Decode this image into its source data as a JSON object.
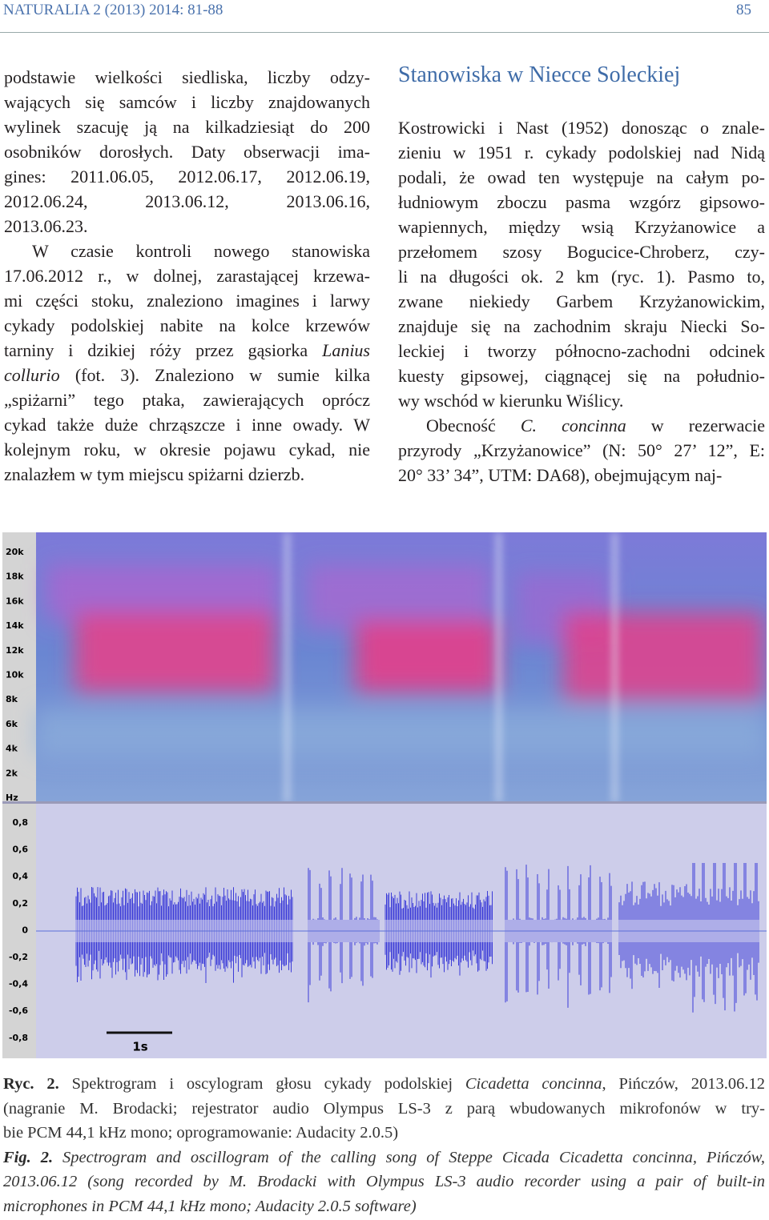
{
  "header": {
    "journal": "NATURALIA 2 (2013) 2014: 81-88",
    "page_number": "85"
  },
  "left_column": {
    "paragraphs": [
      [
        [
          "podstawie wielkości siedliska, liczby odzy-"
        ],
        [
          "wających się samców i liczby znajdowanych"
        ],
        [
          "wylinek szacuję ją na kilkadziesiąt do 200"
        ],
        [
          "osobników dorosłych. Daty obserwacji ima-"
        ],
        [
          "gines: 2011.06.05, 2012.06.17, 2012.06.19,"
        ],
        [
          "2012.06.24, 2013.06.12, 2013.06.16,"
        ],
        [
          "2013.06.23."
        ]
      ],
      [
        [
          "W czasie kontroli nowego stanowiska"
        ],
        [
          "17.06.2012 r., w dolnej, zarastającej krzewa-"
        ],
        [
          "mi części stoku, znaleziono imagines i larwy"
        ],
        [
          "cykady podolskiej nabite na kolce krzewów"
        ],
        [
          "tarniny i dzikiej róży przez gąsiorka ",
          {
            "italic": "Lanius"
          }
        ],
        [
          {
            "italic": "collurio"
          },
          " (fot. 3). Znaleziono w sumie kilka"
        ],
        [
          "„spiżarni” tego ptaka, zawierających oprócz"
        ],
        [
          "cykad także duże chrząszcze i inne owady. W"
        ],
        [
          "kolejnym roku, w okresie pojawu cykad, nie"
        ],
        [
          "znalazłem w tym miejscu spiżarni dzierzb."
        ]
      ]
    ]
  },
  "right_column": {
    "heading": "Stanowiska w Niecce Soleckiej",
    "paragraphs": [
      [
        [
          "Kostrowicki i Nast (1952) donosząc o znale-"
        ],
        [
          "zieniu w 1951 r. cykady podolskiej nad Nidą"
        ],
        [
          "podali, że owad ten występuje na całym po-"
        ],
        [
          "łudniowym zboczu pasma wzgórz gipsowo-"
        ],
        [
          "wapiennych, między wsią Krzyżanowice a"
        ],
        [
          "przełomem szosy Bogucice-Chroberz, czy-"
        ],
        [
          "li na długości ok. 2 km (ryc. 1). Pasmo to,"
        ],
        [
          "zwane niekiedy Garbem Krzyżanowickim,"
        ],
        [
          "znajduje się na zachodnim skraju Niecki So-"
        ],
        [
          "leckiej i tworzy północno-zachodni odcinek"
        ],
        [
          "kuesty gipsowej, ciągnącej się na południo-"
        ],
        [
          "wy wschód w kierunku Wiślicy."
        ]
      ],
      [
        [
          "Obecność ",
          {
            "italic": "C. concinna"
          },
          " w rezerwacie"
        ],
        [
          "przyrody „Krzyżanowice” (N: 50° 27’ 12”, E:"
        ],
        [
          "20° 33’ 34”, UTM: DA68), obejmującym naj-"
        ]
      ]
    ]
  },
  "figure": {
    "spectrogram_labels": [
      "20k",
      "18k",
      "16k",
      "14k",
      "12k",
      "10k",
      "8k",
      "6k",
      "4k",
      "2k",
      "Hz"
    ],
    "oscillogram_labels": [
      "0,8",
      "0,6",
      "0,4",
      "0,2",
      "0",
      "-0,2",
      "-0,4",
      "-0,6",
      "-0,8"
    ],
    "scale_label": "1s"
  },
  "caption": {
    "paragraphs": [
      [
        [
          {
            "bold": "Ryc. 2."
          },
          " Spektrogram i oscylogram głosu cykady podolskiej ",
          {
            "italic": "Cicadetta concinna"
          },
          ", Pińczów, 2013.06.12"
        ],
        [
          "(nagranie M. Brodacki; rejestrator audio Olympus LS-3 z parą wbudowanych mikrofonów w try-"
        ],
        [
          "bie PCM 44,1 kHz mono; oprogramowanie: Audacity 2.0.5)"
        ]
      ],
      [
        [
          {
            "bold_italic": "Fig. 2."
          },
          {
            "italic": " Spectrogram and oscillogram of the calling song of Steppe Cicada Cicadetta concinna, Pińczów,"
          }
        ],
        [
          {
            "italic": "2013.06.12 (song recorded by M. Brodacki with Olympus LS-3 audio recorder using a pair of built-in"
          }
        ],
        [
          {
            "italic": "microphones in PCM 44,1 kHz mono; Audacity 2.0.5 software)"
          }
        ]
      ]
    ]
  }
}
